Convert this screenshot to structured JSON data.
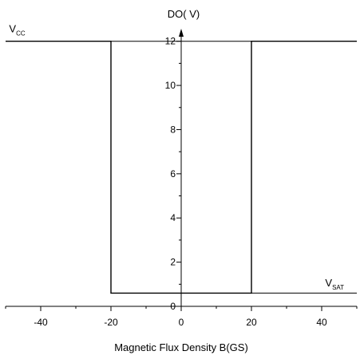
{
  "chart_data": {
    "type": "line",
    "title": "",
    "xlabel": "Magnetic Flux Density B(GS)",
    "ylabel": "DO(  V)",
    "xlim": [
      -50,
      50
    ],
    "ylim": [
      0,
      13
    ],
    "x_ticks": [
      -40,
      -20,
      0,
      20,
      40
    ],
    "y_ticks": [
      0,
      2,
      4,
      6,
      8,
      10,
      12
    ],
    "grid": false,
    "series": [
      {
        "x": [
          -50,
          -20,
          -20,
          20,
          20,
          50
        ],
        "y": [
          12,
          12,
          0.6,
          0.6,
          12,
          12
        ]
      },
      {
        "x": [
          -20,
          20,
          20,
          50
        ],
        "y": [
          12,
          12,
          0.6,
          0.6
        ]
      }
    ],
    "annotations": [
      {
        "text": "V",
        "sub": "CC",
        "x": -49,
        "y": 12.4
      },
      {
        "text": "V",
        "sub": "SAT",
        "x": 41,
        "y": 0.9
      }
    ]
  }
}
